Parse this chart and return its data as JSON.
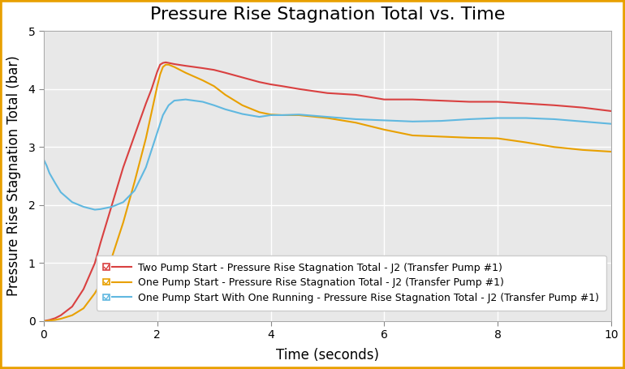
{
  "title": "Pressure Rise Stagnation Total vs. Time",
  "xlabel": "Time (seconds)",
  "ylabel": "Pressure Rise Stagnation Total (bar)",
  "xlim": [
    0,
    10
  ],
  "ylim": [
    0,
    5
  ],
  "xticks": [
    0,
    2,
    4,
    6,
    8,
    10
  ],
  "yticks": [
    0,
    1,
    2,
    3,
    4,
    5
  ],
  "fig_bg_color": "#ffffff",
  "plot_bg_color": "#e8e8e8",
  "grid_color": "#ffffff",
  "border_color": "#e8a000",
  "title_fontsize": 16,
  "axis_label_fontsize": 12,
  "tick_fontsize": 10,
  "legend_fontsize": 9,
  "line_width": 1.5,
  "series": [
    {
      "label": "Two Pump Start - Pressure Rise Stagnation Total - J2 (Transfer Pump #1)",
      "color": "#d94040",
      "time": [
        0.0,
        0.05,
        0.1,
        0.2,
        0.3,
        0.5,
        0.7,
        0.9,
        1.0,
        1.2,
        1.4,
        1.6,
        1.8,
        1.9,
        2.0,
        2.05,
        2.1,
        2.15,
        2.2,
        2.3,
        2.5,
        2.8,
        3.0,
        3.2,
        3.5,
        3.8,
        4.0,
        4.2,
        4.5,
        5.0,
        5.5,
        6.0,
        6.5,
        7.0,
        7.5,
        8.0,
        8.5,
        9.0,
        9.5,
        10.0
      ],
      "values": [
        0.0,
        0.01,
        0.02,
        0.05,
        0.1,
        0.25,
        0.55,
        1.0,
        1.35,
        2.0,
        2.65,
        3.2,
        3.75,
        4.0,
        4.3,
        4.42,
        4.45,
        4.46,
        4.45,
        4.43,
        4.4,
        4.36,
        4.33,
        4.28,
        4.2,
        4.12,
        4.08,
        4.05,
        4.0,
        3.93,
        3.9,
        3.82,
        3.82,
        3.8,
        3.78,
        3.78,
        3.75,
        3.72,
        3.68,
        3.62
      ]
    },
    {
      "label": "One Pump Start - Pressure Rise Stagnation Total - J2 (Transfer Pump #1)",
      "color": "#e8a000",
      "time": [
        0.0,
        0.05,
        0.1,
        0.2,
        0.3,
        0.5,
        0.7,
        0.9,
        1.0,
        1.2,
        1.4,
        1.6,
        1.8,
        1.9,
        2.0,
        2.05,
        2.1,
        2.15,
        2.2,
        2.3,
        2.5,
        2.8,
        3.0,
        3.2,
        3.5,
        3.8,
        4.0,
        4.2,
        4.5,
        5.0,
        5.5,
        6.0,
        6.5,
        7.0,
        7.5,
        8.0,
        8.5,
        9.0,
        9.5,
        10.0
      ],
      "values": [
        0.0,
        0.0,
        0.01,
        0.02,
        0.04,
        0.1,
        0.22,
        0.48,
        0.65,
        1.1,
        1.7,
        2.4,
        3.15,
        3.6,
        4.05,
        4.25,
        4.38,
        4.42,
        4.42,
        4.38,
        4.28,
        4.15,
        4.05,
        3.9,
        3.72,
        3.6,
        3.56,
        3.55,
        3.55,
        3.5,
        3.42,
        3.3,
        3.2,
        3.18,
        3.16,
        3.15,
        3.08,
        3.0,
        2.95,
        2.92
      ]
    },
    {
      "label": "One Pump Start With One Running - Pressure Rise Stagnation Total - J2 (Transfer Pump #1)",
      "color": "#60b8e0",
      "time": [
        0.0,
        0.05,
        0.1,
        0.2,
        0.3,
        0.5,
        0.7,
        0.9,
        1.0,
        1.2,
        1.4,
        1.6,
        1.8,
        1.9,
        2.0,
        2.1,
        2.2,
        2.3,
        2.5,
        2.8,
        3.0,
        3.2,
        3.5,
        3.8,
        4.0,
        4.2,
        4.5,
        5.0,
        5.5,
        6.0,
        6.5,
        7.0,
        7.5,
        8.0,
        8.5,
        9.0,
        9.5,
        10.0
      ],
      "values": [
        2.78,
        2.68,
        2.55,
        2.38,
        2.22,
        2.05,
        1.97,
        1.92,
        1.93,
        1.97,
        2.05,
        2.25,
        2.65,
        2.95,
        3.25,
        3.55,
        3.72,
        3.8,
        3.82,
        3.78,
        3.72,
        3.65,
        3.57,
        3.52,
        3.55,
        3.55,
        3.56,
        3.52,
        3.48,
        3.46,
        3.44,
        3.45,
        3.48,
        3.5,
        3.5,
        3.48,
        3.44,
        3.4
      ]
    }
  ]
}
